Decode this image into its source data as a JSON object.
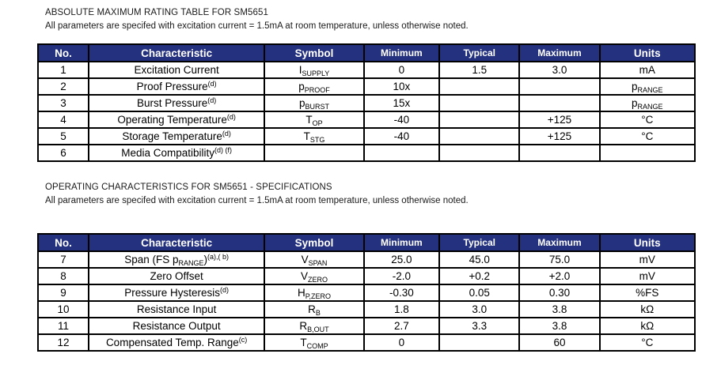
{
  "page": {
    "header_bg": "#24317F",
    "header_text_color": "#ffffff",
    "border_color": "#000000",
    "device": "SM5651"
  },
  "sections": [
    {
      "title": "ABSOLUTE MAXIMUM RATING TABLE FOR SM5651",
      "subtitle": "All parameters are specifed with excitation current = 1.5mA at room temperature, unless otherwise noted.",
      "table": {
        "headers": [
          "No.",
          "Characteristic",
          "Symbol",
          "Minimum",
          "Typical",
          "Maximum",
          "Units"
        ],
        "rows": [
          [
            "1",
            "Excitation Current",
            "I_{SUPPLY}",
            "0",
            "1.5",
            "3.0",
            "mA"
          ],
          [
            "2",
            "Proof Pressure^{(d)}",
            "p_{PROOF}",
            "10x",
            "",
            "",
            "p_{RANGE}"
          ],
          [
            "3",
            "Burst Pressure^{(d)}",
            "p_{BURST}",
            "15x",
            "",
            "",
            "p_{RANGE}"
          ],
          [
            "4",
            "Operating Temperature^{(d)}",
            "T_{OP}",
            "-40",
            "",
            "+125",
            "°C"
          ],
          [
            "5",
            "Storage Temperature^{(d)}",
            "T_{STG}",
            "-40",
            "",
            "+125",
            "°C"
          ],
          [
            "6",
            "Media Compatibility^{(d) (f)}",
            "",
            "",
            "",
            "",
            ""
          ]
        ]
      }
    },
    {
      "title": "OPERATING CHARACTERISTICS FOR SM5651 - SPECIFICATIONS",
      "subtitle": "All parameters are specifed with excitation current = 1.5mA at room temperature, unless otherwise noted.",
      "table": {
        "headers": [
          "No.",
          "Characteristic",
          "Symbol",
          "Minimum",
          "Typical",
          "Maximum",
          "Units"
        ],
        "rows": [
          [
            "7",
            "Span (FS p_{RANGE})^{(a),( b)}",
            "V_{SPAN}",
            "25.0",
            "45.0",
            "75.0",
            "mV"
          ],
          [
            "8",
            "Zero Offset",
            "V_{ZERO}",
            "-2.0",
            "+0.2",
            "+2.0",
            "mV"
          ],
          [
            "9",
            "Pressure Hysteresis^{(d)}",
            "H_{P,ZERO}",
            "-0.30",
            "0.05",
            "0.30",
            "%FS"
          ],
          [
            "10",
            "Resistance Input",
            "R_{B}",
            "1.8",
            "3.0",
            "3.8",
            "kΩ"
          ],
          [
            "11",
            "Resistance Output",
            "R_{B,OUT}",
            "2.7",
            "3.3",
            "3.8",
            "kΩ"
          ],
          [
            "12",
            "Compensated Temp. Range^{(c)}",
            "T_{COMP}",
            "0",
            "",
            "60",
            "°C"
          ]
        ]
      }
    }
  ]
}
